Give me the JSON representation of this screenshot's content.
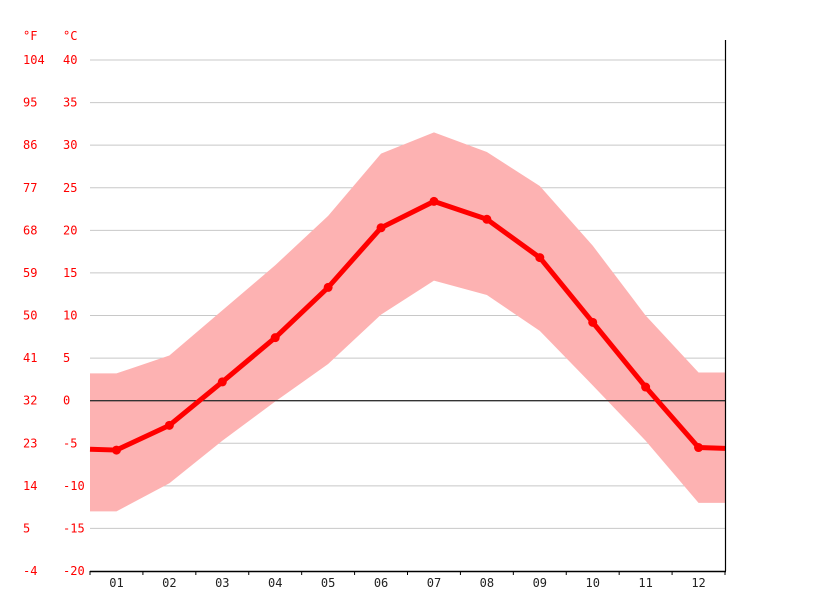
{
  "chart_data": {
    "type": "line",
    "title": "",
    "unit_labels": {
      "fahrenheit": "°F",
      "celsius": "°C"
    },
    "categories": [
      "01",
      "02",
      "03",
      "04",
      "05",
      "06",
      "07",
      "08",
      "09",
      "10",
      "11",
      "12"
    ],
    "ylim": [
      -20,
      40
    ],
    "celsius_ticks": [
      "40",
      "35",
      "30",
      "25",
      "20",
      "15",
      "10",
      "5",
      "0",
      "-5",
      "-10",
      "-15",
      "-20"
    ],
    "fahrenheit_ticks": [
      "104",
      "95",
      "86",
      "77",
      "68",
      "59",
      "50",
      "41",
      "32",
      "23",
      "14",
      "5",
      "-4"
    ],
    "grid": true,
    "series": [
      {
        "role": "mean",
        "color": "#ff0000",
        "values": [
          -5.8,
          -2.9,
          2.2,
          7.4,
          13.3,
          20.3,
          23.4,
          21.3,
          16.8,
          9.2,
          1.6,
          -5.5
        ]
      },
      {
        "role": "max",
        "color": "#fdb2b2",
        "values": [
          3.2,
          5.3,
          10.6,
          15.9,
          21.7,
          29.0,
          31.5,
          29.2,
          25.2,
          18.2,
          10.0,
          3.3
        ]
      },
      {
        "role": "min",
        "color": "#fdb2b2",
        "values": [
          -13.0,
          -9.7,
          -4.7,
          -0.1,
          4.3,
          10.1,
          14.1,
          12.4,
          8.2,
          1.8,
          -4.7,
          -12.0
        ]
      }
    ]
  }
}
